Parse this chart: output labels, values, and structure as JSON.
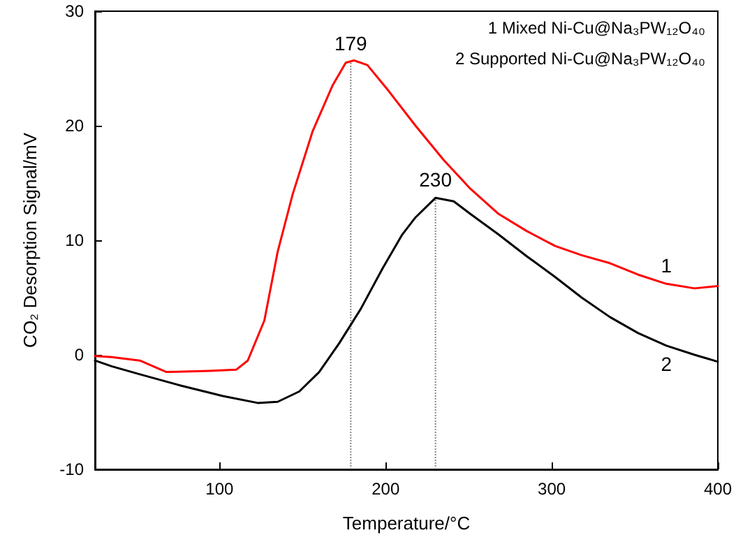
{
  "chart_data": {
    "type": "line",
    "xlabel": "Temperature/°C",
    "ylabel": "CO₂ Desorption Signal/mV",
    "xlim": [
      25,
      400
    ],
    "xticks": [
      100,
      200,
      300,
      400
    ],
    "ylim": [
      -10,
      30
    ],
    "yticks": [
      -10,
      0,
      10,
      20,
      30
    ],
    "grid": false,
    "marker": "none",
    "line_style": "solid",
    "series": [
      {
        "name": "1",
        "color": "#ff0000",
        "x": [
          25,
          35,
          52,
          68,
          94,
          110,
          117,
          127,
          135,
          144,
          156,
          168,
          176,
          181,
          189,
          202,
          218,
          235,
          251,
          268,
          285,
          302,
          318,
          335,
          352,
          369,
          386,
          400
        ],
        "values": [
          -0.1,
          -0.2,
          -0.5,
          -1.5,
          -1.4,
          -1.3,
          -0.5,
          3,
          9,
          14,
          19.5,
          23.5,
          25.5,
          25.7,
          25.3,
          23,
          20,
          17,
          14.5,
          12.3,
          10.8,
          9.5,
          8.7,
          8,
          7,
          6.2,
          5.8,
          6
        ]
      },
      {
        "name": "2",
        "color": "#000000",
        "x": [
          25,
          35,
          52,
          77,
          102,
          123,
          135,
          148,
          160,
          172,
          185,
          198,
          210,
          218,
          230,
          241,
          251,
          268,
          285,
          302,
          318,
          335,
          352,
          369,
          386,
          400
        ],
        "values": [
          -0.5,
          -1,
          -1.7,
          -2.7,
          -3.6,
          -4.2,
          -4.1,
          -3.2,
          -1.5,
          1,
          4,
          7.5,
          10.5,
          12,
          13.7,
          13.4,
          12.3,
          10.5,
          8.6,
          6.8,
          5,
          3.3,
          1.9,
          0.8,
          0,
          -0.6
        ]
      }
    ],
    "ref_lines": [
      {
        "axis": "x",
        "value": 179,
        "label": "179",
        "color": "#888888",
        "line_style": "dotted"
      },
      {
        "axis": "x",
        "value": 230,
        "label": "230",
        "color": "#888888",
        "line_style": "dotted"
      }
    ],
    "annotations": [
      "1 Mixed Ni-Cu@Na₃PW₁₂O₄₀",
      "2 Supported Ni-Cu@Na₃PW₁₂O₄₀"
    ]
  }
}
